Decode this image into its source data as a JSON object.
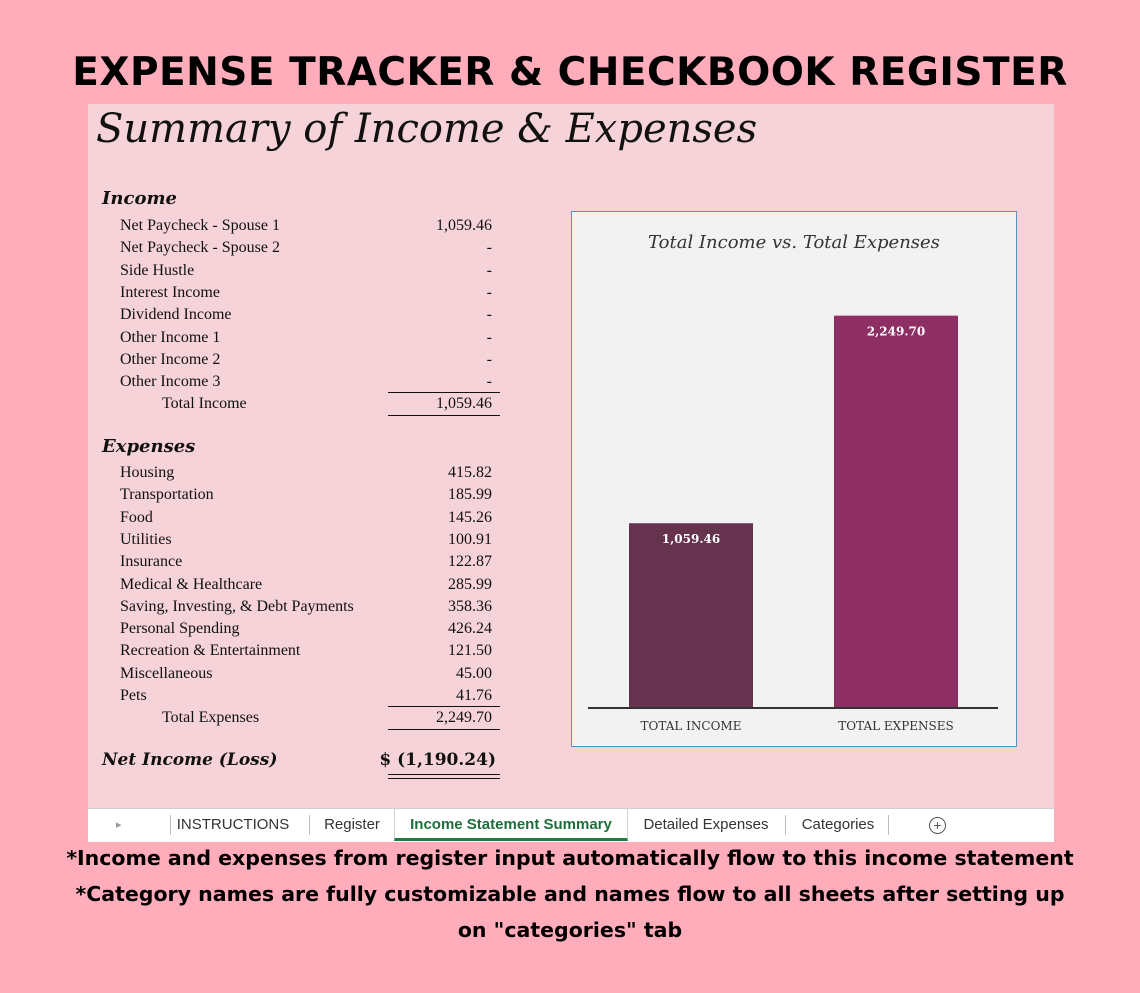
{
  "headline": "EXPENSE TRACKER & CHECKBOOK REGISTER",
  "sheet": {
    "title": "Summary of Income & Expenses",
    "income": {
      "heading": "Income",
      "items": [
        {
          "label": "Net Paycheck - Spouse 1",
          "value": "1,059.46"
        },
        {
          "label": "Net Paycheck - Spouse 2",
          "value": "-"
        },
        {
          "label": "Side Hustle",
          "value": "-"
        },
        {
          "label": "Interest Income",
          "value": "-"
        },
        {
          "label": "Dividend Income",
          "value": "-"
        },
        {
          "label": "Other Income 1",
          "value": "-"
        },
        {
          "label": "Other Income 2",
          "value": "-"
        },
        {
          "label": "Other Income 3",
          "value": "-"
        }
      ],
      "total_label": "Total Income",
      "total_value": "1,059.46"
    },
    "expenses": {
      "heading": "Expenses",
      "items": [
        {
          "label": "Housing",
          "value": "415.82"
        },
        {
          "label": "Transportation",
          "value": "185.99"
        },
        {
          "label": "Food",
          "value": "145.26"
        },
        {
          "label": "Utilities",
          "value": "100.91"
        },
        {
          "label": "Insurance",
          "value": "122.87"
        },
        {
          "label": "Medical & Healthcare",
          "value": "285.99"
        },
        {
          "label": "Saving, Investing, & Debt Payments",
          "value": "358.36"
        },
        {
          "label": "Personal Spending",
          "value": "426.24"
        },
        {
          "label": "Recreation & Entertainment",
          "value": "121.50"
        },
        {
          "label": "Miscellaneous",
          "value": "45.00"
        },
        {
          "label": "Pets",
          "value": "41.76"
        }
      ],
      "total_label": "Total Expenses",
      "total_value": "2,249.70"
    },
    "net": {
      "label": "Net Income (Loss)",
      "value": "$ (1,190.24)"
    }
  },
  "chart_data": {
    "type": "bar",
    "title": "Total Income vs. Total Expenses",
    "categories": [
      "TOTAL INCOME",
      "TOTAL EXPENSES"
    ],
    "values": [
      1059.46,
      2249.7
    ],
    "value_labels": [
      "1,059.46",
      "2,249.70"
    ],
    "colors": [
      "#66334f",
      "#8e2f63"
    ],
    "ylim": [
      0,
      2500
    ],
    "grid": false
  },
  "tabs": {
    "items": [
      "INSTRUCTIONS",
      "Register",
      "Income Statement Summary",
      "Detailed Expenses",
      "Categories"
    ],
    "active": "Income Statement Summary"
  },
  "notes": [
    "*Income and expenses from register input automatically flow to this income statement",
    "*Category names are fully customizable and names flow to all sheets after setting up",
    "on \"categories\" tab"
  ]
}
